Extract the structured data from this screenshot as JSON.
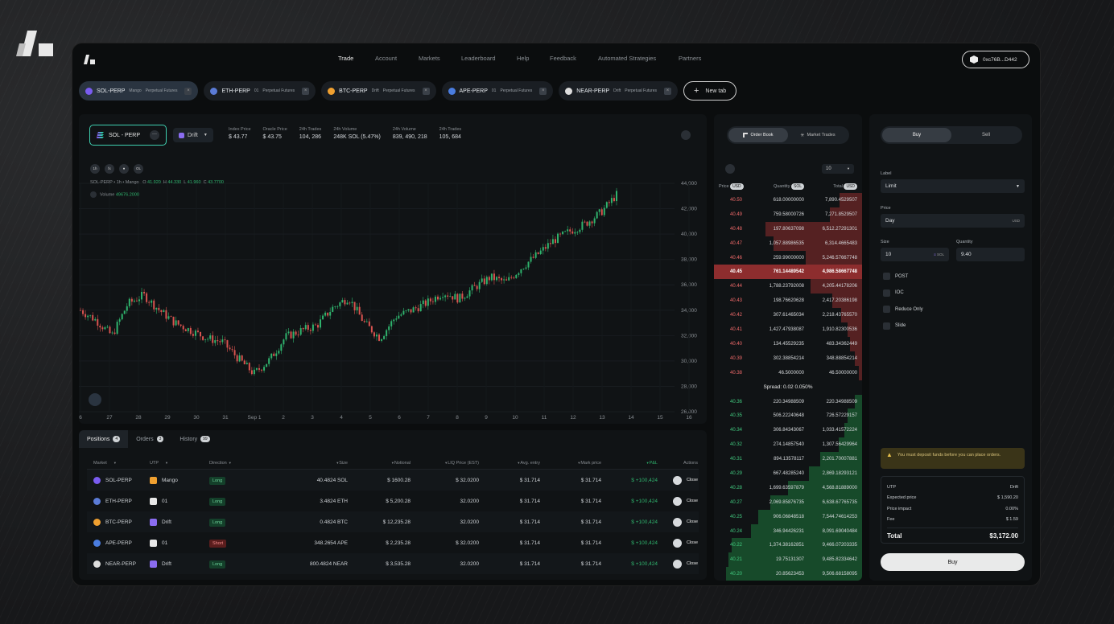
{
  "nav": {
    "links": [
      "Trade",
      "Account",
      "Markets",
      "Leaderboard",
      "Help",
      "Feedback",
      "Automated Strategies",
      "Partners"
    ],
    "wallet": "0xc76B...D442"
  },
  "tabs": [
    {
      "symbol": "SOL-PERP",
      "venue": "Mango",
      "type": "Perpetual Futures",
      "coin_color": "#7a5cf0",
      "active": true
    },
    {
      "symbol": "ETH-PERP",
      "venue": "01",
      "type": "Perpetual Futures",
      "coin_color": "#5b7bd6",
      "active": false
    },
    {
      "symbol": "BTC-PERP",
      "venue": "Drift",
      "type": "Perpetual Futures",
      "coin_color": "#f0a030",
      "active": false
    },
    {
      "symbol": "APE-PERP",
      "venue": "01",
      "type": "Perpetual Futures",
      "coin_color": "#4a7de0",
      "active": false
    },
    {
      "symbol": "NEAR-PERP",
      "venue": "Drift",
      "type": "Perpetual Futures",
      "coin_color": "#dddddd",
      "active": false
    }
  ],
  "new_tab_label": "New tab",
  "chart_header": {
    "market": "SOL - PERP",
    "venue": "Drift",
    "stats": [
      {
        "label": "Index Price",
        "value": "$ 43.77"
      },
      {
        "label": "Oracle Price",
        "value": "$ 43.75"
      },
      {
        "label": "24h Trades",
        "value": "104, 286"
      },
      {
        "label": "24h Volume",
        "value": "248K SOL (5.47%)"
      },
      {
        "label": "24h Volume",
        "value": "839, 490, 218"
      },
      {
        "label": "24h Trades",
        "value": "105, 684"
      }
    ],
    "timeframes": [
      "1h",
      "fx",
      "⏺",
      "OL"
    ],
    "ohlc_prefix": "SOL-PERP  •  1h  •  Mango",
    "ohlc": {
      "o": "41.920",
      "h": "44.330",
      "l": "41.960",
      "c": "43.7700"
    },
    "volume": "49676.2000"
  },
  "chart_data": {
    "type": "candlestick",
    "x_ticks": [
      "6",
      "27",
      "28",
      "29",
      "30",
      "31",
      "Sep 1",
      "2",
      "3",
      "4",
      "5",
      "6",
      "7",
      "8",
      "9",
      "10",
      "11",
      "12",
      "13",
      "14",
      "15",
      "16"
    ],
    "y_ticks": [
      44000,
      42000,
      40000,
      38000,
      36000,
      34000,
      32000,
      30000,
      28000,
      26000
    ],
    "ylim": [
      26000,
      44000
    ],
    "trend": [
      34000,
      33200,
      32000,
      34500,
      35200,
      34000,
      33000,
      32400,
      31800,
      31500,
      30200,
      29000,
      30100,
      31900,
      32400,
      32800,
      34200,
      35000,
      33000,
      31800,
      33500,
      34000,
      34600,
      35400,
      34900,
      35800,
      36600,
      36200,
      37400,
      38400,
      39500,
      40200,
      40800,
      41700,
      43100
    ],
    "colors": {
      "up": "#2fb36d",
      "down": "#d9534f"
    }
  },
  "positions": {
    "tabs": [
      {
        "label": "Positions",
        "count": "4"
      },
      {
        "label": "Orders",
        "count": "3"
      },
      {
        "label": "History",
        "count": "99"
      }
    ],
    "columns": [
      "Market",
      "UTP",
      "Direction",
      "Size",
      "Notional",
      "LIQ Price (EST)",
      "Avg. entry",
      "Mark price",
      "P&L",
      "Actions"
    ],
    "rows": [
      {
        "market": "SOL-PERP",
        "utp": "Mango",
        "direction": "Long",
        "size": "40.4824 SOL",
        "notional": "$ 1600.28",
        "liq": "$ 32.0200",
        "avg": "$ 31.714",
        "mark": "$ 31.714",
        "pnl": "$ +100,424",
        "action": "Close",
        "coin": "#7a5cf0",
        "utp_color": "#f0a030"
      },
      {
        "market": "ETH-PERP",
        "utp": "01",
        "direction": "Long",
        "size": "3.4824 ETH",
        "notional": "$ 5,200.28",
        "liq": "32.0200",
        "avg": "$ 31.714",
        "mark": "$ 31.714",
        "pnl": "$ +100,424",
        "action": "Close",
        "coin": "#5b7bd6",
        "utp_color": "#e8e8e8"
      },
      {
        "market": "BTC-PERP",
        "utp": "Drift",
        "direction": "Long",
        "size": "0.4824 BTC",
        "notional": "$ 12,235.28",
        "liq": "32.0200",
        "avg": "$ 31.714",
        "mark": "$ 31.714",
        "pnl": "$ +100,424",
        "action": "Close",
        "coin": "#f0a030",
        "utp_color": "#8a6cf0"
      },
      {
        "market": "APE-PERP",
        "utp": "01",
        "direction": "Short",
        "size": "348.2654 APE",
        "notional": "$ 2,235.28",
        "liq": "$ 32.0200",
        "avg": "$ 31.714",
        "mark": "$ 31.714",
        "pnl": "$ +100,424",
        "action": "Close",
        "coin": "#4a7de0",
        "utp_color": "#e8e8e8"
      },
      {
        "market": "NEAR-PERP",
        "utp": "Drift",
        "direction": "Long",
        "size": "800.4824 NEAR",
        "notional": "$ 3,535.28",
        "liq": "32.0200",
        "avg": "$ 31.714",
        "mark": "$ 31.714",
        "pnl": "$ +100,424",
        "action": "Close",
        "coin": "#dddddd",
        "utp_color": "#8a6cf0"
      }
    ]
  },
  "order_book": {
    "tabs": [
      "Order Book",
      "Market Trades"
    ],
    "depth": "10",
    "headers": {
      "price": "Price",
      "price_unit": "USD",
      "qty": "Quantity",
      "qty_unit": "SOL",
      "total": "Total",
      "total_unit": "USD"
    },
    "asks": [
      {
        "price": "40.50",
        "qty": "618.00000000",
        "total": "7,890.4529507",
        "fill": 0.15
      },
      {
        "price": "40.49",
        "qty": "759.58000726",
        "total": "7,271.8529507",
        "fill": 0.22
      },
      {
        "price": "40.48",
        "qty": "197.80637098",
        "total": "6,512.27291301",
        "fill": 0.65
      },
      {
        "price": "40.47",
        "qty": "1,057.88986535",
        "total": "6,314.4665483",
        "fill": 0.6
      },
      {
        "price": "40.46",
        "qty": "259.99000000",
        "total": "5,246.57667748",
        "fill": 0.38
      },
      {
        "price": "40.45",
        "qty": "761.14489542",
        "total": "4,986.58667748",
        "fill": 1.0
      },
      {
        "price": "40.44",
        "qty": "1,788.23792008",
        "total": "4,205.44178206",
        "fill": 0.35
      },
      {
        "price": "40.43",
        "qty": "198.76620628",
        "total": "2,417.20386198",
        "fill": 0.2
      },
      {
        "price": "40.42",
        "qty": "307.61465034",
        "total": "2,218.43765570",
        "fill": 0.14
      },
      {
        "price": "40.41",
        "qty": "1,427.47938087",
        "total": "1,910.82300536",
        "fill": 0.1
      },
      {
        "price": "40.40",
        "qty": "134.45529235",
        "total": "483.34362449",
        "fill": 0.08
      },
      {
        "price": "40.39",
        "qty": "302.38854214",
        "total": "348.88854214",
        "fill": 0.05
      },
      {
        "price": "40.38",
        "qty": "46.5000000",
        "total": "46.50000000",
        "fill": 0.02
      }
    ],
    "spread": "Spread: 0.02 0.050%",
    "bids": [
      {
        "price": "40.36",
        "qty": "220.34988509",
        "total": "220.34988509",
        "fill": 0.05
      },
      {
        "price": "40.35",
        "qty": "506.22240648",
        "total": "726.57229157",
        "fill": 0.1
      },
      {
        "price": "40.34",
        "qty": "306.84343067",
        "total": "1,033.41572224",
        "fill": 0.12
      },
      {
        "price": "40.32",
        "qty": "274.14857540",
        "total": "1,307.56429964",
        "fill": 0.16
      },
      {
        "price": "40.31",
        "qty": "894.13578117",
        "total": "2,201.70007881",
        "fill": 0.28
      },
      {
        "price": "40.29",
        "qty": "667.48285240",
        "total": "2,869.18293121",
        "fill": 0.36
      },
      {
        "price": "40.28",
        "qty": "1,699.63597879",
        "total": "4,568.81889000",
        "fill": 0.5
      },
      {
        "price": "40.27",
        "qty": "2,069.85876735",
        "total": "6,638.67765735",
        "fill": 0.62
      },
      {
        "price": "40.25",
        "qty": "906.06848518",
        "total": "7,544.74614253",
        "fill": 0.7
      },
      {
        "price": "40.24",
        "qty": "346.94426231",
        "total": "8,091.69040484",
        "fill": 0.75
      },
      {
        "price": "40.22",
        "qty": "1,374.38162851",
        "total": "9,466.07203335",
        "fill": 0.88
      },
      {
        "price": "40.21",
        "qty": "19.75131307",
        "total": "9,485.82334642",
        "fill": 0.9
      },
      {
        "price": "40.20",
        "qty": "20.85623453",
        "total": "9,506.68158095",
        "fill": 0.92
      }
    ]
  },
  "trade_panel": {
    "buy_tab": "Buy",
    "sell_tab": "Sell",
    "label_label": "Label",
    "label_value": "Limit",
    "price_label": "Price",
    "price_value": "Day",
    "price_unit": "USD",
    "size_label": "Size",
    "size_value": "10",
    "size_unit": "SOL",
    "qty_label": "Quantity",
    "qty_value": "9.40",
    "options": [
      "POST",
      "IOC",
      "Reduce Only",
      "Slide"
    ],
    "warning": "You must deposit funds before you can place orders.",
    "summary": [
      {
        "k": "UTP",
        "v": "Drift"
      },
      {
        "k": "Expected price",
        "v": "$ 1,590.20"
      },
      {
        "k": "Price impact",
        "v": "0.00%"
      },
      {
        "k": "Fee",
        "v": "$ 1.59"
      }
    ],
    "total_label": "Total",
    "total_value": "$3,172.00",
    "submit": "Buy"
  }
}
